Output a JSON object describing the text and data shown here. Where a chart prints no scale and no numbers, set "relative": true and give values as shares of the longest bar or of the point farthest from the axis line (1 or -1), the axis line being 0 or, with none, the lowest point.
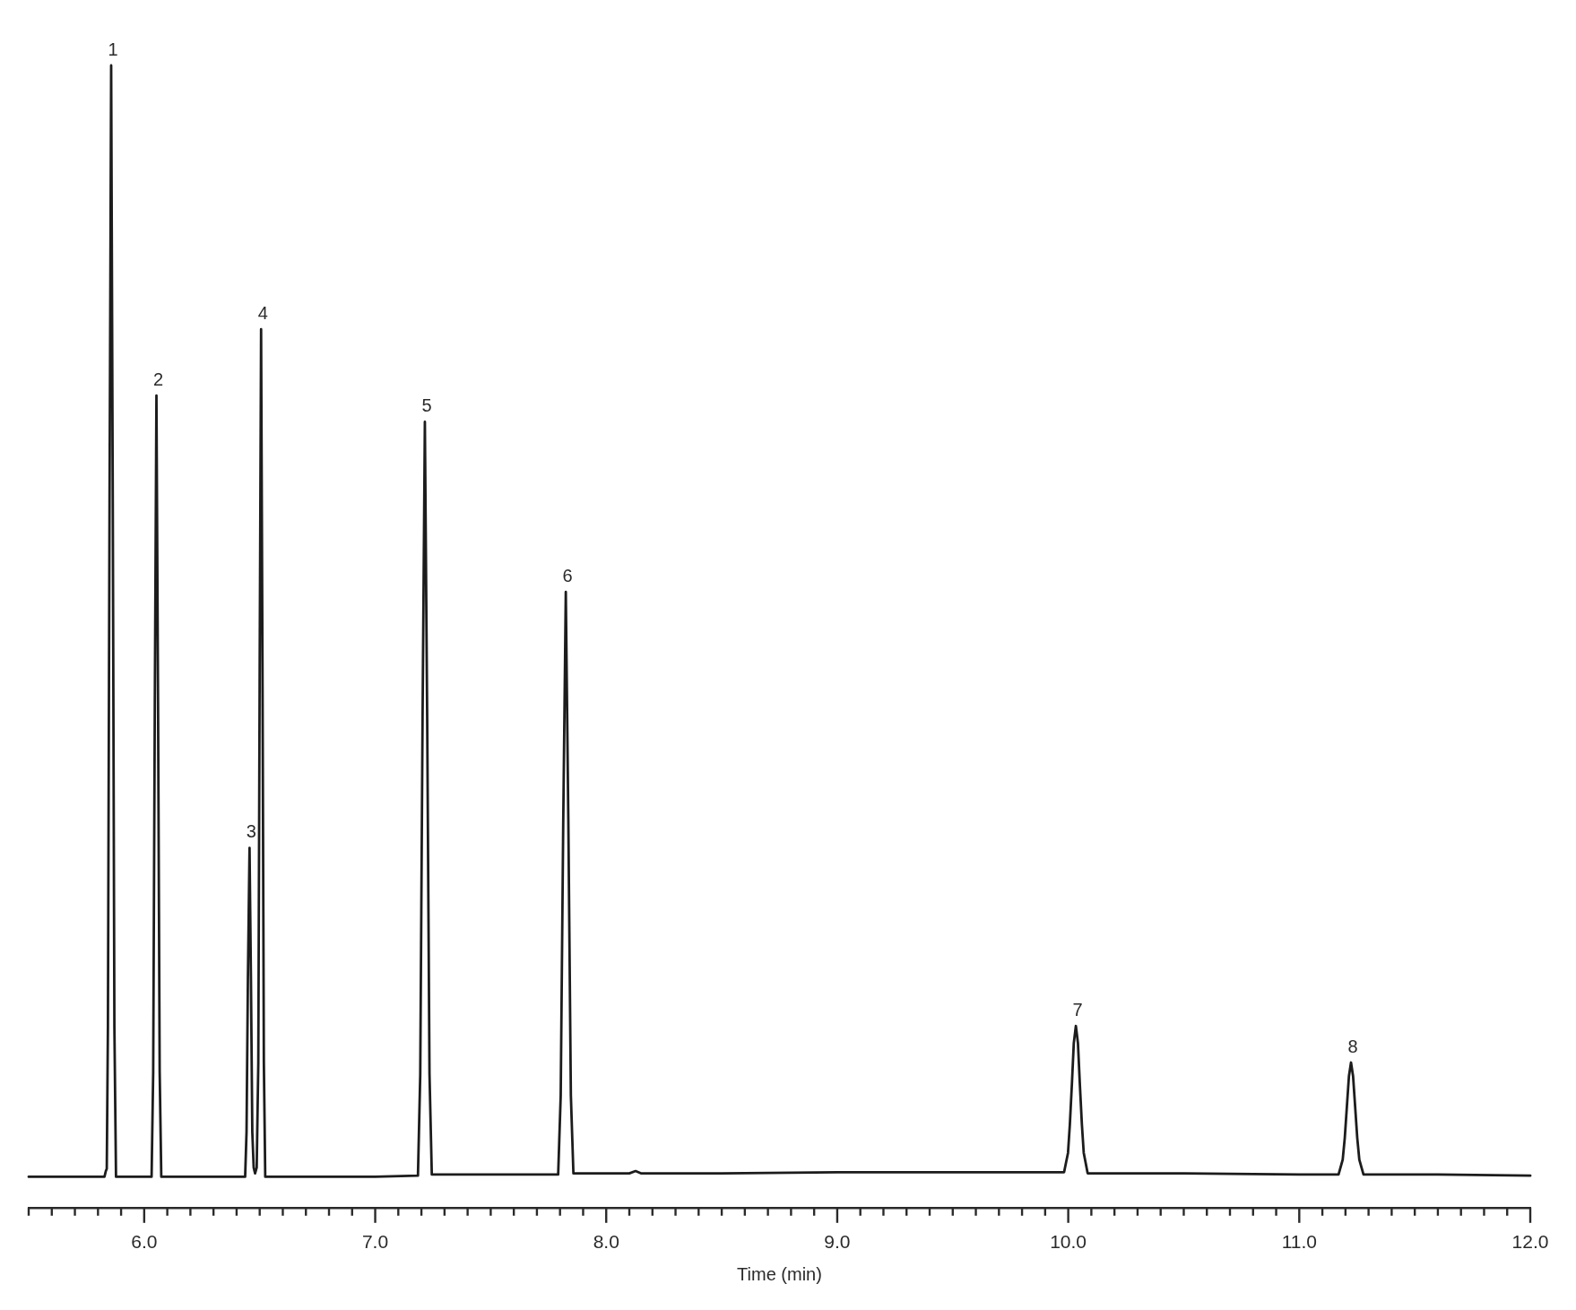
{
  "chart_data": {
    "type": "line",
    "relative": true,
    "xlabel": "Time (min)",
    "color": "#1c1c1c",
    "marker": "none",
    "line_style": "solid",
    "xlim": [
      5.5,
      12.0
    ],
    "xticks": [
      {
        "value": 5.5,
        "label": null
      },
      {
        "value": 5.6,
        "label": null
      },
      {
        "value": 5.7,
        "label": null
      },
      {
        "value": 5.8,
        "label": null
      },
      {
        "value": 5.9,
        "label": null
      },
      {
        "value": 6,
        "label": "6.0"
      },
      {
        "value": 6.1,
        "label": null
      },
      {
        "value": 6.2,
        "label": null
      },
      {
        "value": 6.3,
        "label": null
      },
      {
        "value": 6.4,
        "label": null
      },
      {
        "value": 6.5,
        "label": null
      },
      {
        "value": 6.6,
        "label": null
      },
      {
        "value": 6.7,
        "label": null
      },
      {
        "value": 6.8,
        "label": null
      },
      {
        "value": 6.9,
        "label": null
      },
      {
        "value": 7,
        "label": "7.0"
      },
      {
        "value": 7.1,
        "label": null
      },
      {
        "value": 7.2,
        "label": null
      },
      {
        "value": 7.3,
        "label": null
      },
      {
        "value": 7.4,
        "label": null
      },
      {
        "value": 7.5,
        "label": null
      },
      {
        "value": 7.6,
        "label": null
      },
      {
        "value": 7.7,
        "label": null
      },
      {
        "value": 7.8,
        "label": null
      },
      {
        "value": 7.9,
        "label": null
      },
      {
        "value": 8,
        "label": "8.0"
      },
      {
        "value": 8.1,
        "label": null
      },
      {
        "value": 8.2,
        "label": null
      },
      {
        "value": 8.3,
        "label": null
      },
      {
        "value": 8.4,
        "label": null
      },
      {
        "value": 8.5,
        "label": null
      },
      {
        "value": 8.6,
        "label": null
      },
      {
        "value": 8.7,
        "label": null
      },
      {
        "value": 8.8,
        "label": null
      },
      {
        "value": 8.9,
        "label": null
      },
      {
        "value": 9,
        "label": "9.0"
      },
      {
        "value": 9.1,
        "label": null
      },
      {
        "value": 9.2,
        "label": null
      },
      {
        "value": 9.3,
        "label": null
      },
      {
        "value": 9.4,
        "label": null
      },
      {
        "value": 9.5,
        "label": null
      },
      {
        "value": 9.6,
        "label": null
      },
      {
        "value": 9.7,
        "label": null
      },
      {
        "value": 9.8,
        "label": null
      },
      {
        "value": 9.9,
        "label": null
      },
      {
        "value": 10,
        "label": "10.0"
      },
      {
        "value": 10.1,
        "label": null
      },
      {
        "value": 10.2,
        "label": null
      },
      {
        "value": 10.3,
        "label": null
      },
      {
        "value": 10.4,
        "label": null
      },
      {
        "value": 10.5,
        "label": null
      },
      {
        "value": 10.6,
        "label": null
      },
      {
        "value": 10.7,
        "label": null
      },
      {
        "value": 10.8,
        "label": null
      },
      {
        "value": 10.9,
        "label": null
      },
      {
        "value": 11,
        "label": "11.0"
      },
      {
        "value": 11.1,
        "label": null
      },
      {
        "value": 11.2,
        "label": null
      },
      {
        "value": 11.3,
        "label": null
      },
      {
        "value": 11.4,
        "label": null
      },
      {
        "value": 11.5,
        "label": null
      },
      {
        "value": 11.6,
        "label": null
      },
      {
        "value": 11.7,
        "label": null
      },
      {
        "value": 11.8,
        "label": null
      },
      {
        "value": 11.9,
        "label": null
      },
      {
        "value": 12,
        "label": "12.0"
      }
    ],
    "x": [
      5.5,
      5.75,
      5.828,
      5.834,
      5.838,
      5.843,
      5.85,
      5.857,
      5.864,
      5.871,
      5.878,
      5.95,
      6.032,
      6.039,
      6.046,
      6.053,
      6.06,
      6.067,
      6.074,
      6.25,
      6.437,
      6.443,
      6.449,
      6.456,
      6.462,
      6.468,
      6.474,
      6.48,
      6.487,
      6.494,
      6.5,
      6.506,
      6.512,
      6.518,
      6.524,
      6.8,
      7.0,
      7.185,
      7.195,
      7.205,
      7.215,
      7.225,
      7.235,
      7.245,
      7.5,
      7.792,
      7.803,
      7.814,
      7.825,
      7.836,
      7.847,
      7.858,
      8.1,
      8.127,
      8.15,
      8.5,
      9.0,
      9.5,
      9.982,
      9.999,
      10.007,
      10.016,
      10.024,
      10.033,
      10.042,
      10.05,
      10.059,
      10.067,
      10.084,
      10.5,
      11.0,
      11.17,
      11.188,
      11.197,
      11.206,
      11.215,
      11.224,
      11.233,
      11.242,
      11.251,
      11.26,
      11.278,
      11.6,
      12.0
    ],
    "values": [
      0.027,
      0.027,
      0.027,
      0.032,
      0.034,
      0.158,
      0.618,
      1,
      0.618,
      0.158,
      0.027,
      0.027,
      0.027,
      0.119,
      0.442,
      0.711,
      0.442,
      0.119,
      0.027,
      0.027,
      0.027,
      0.066,
      0.202,
      0.315,
      0.202,
      0.066,
      0.035,
      0.03,
      0.035,
      0.127,
      0.477,
      0.769,
      0.477,
      0.127,
      0.027,
      0.027,
      0.027,
      0.028,
      0.117,
      0.429,
      0.688,
      0.429,
      0.117,
      0.029,
      0.029,
      0.029,
      0.098,
      0.339,
      0.539,
      0.339,
      0.098,
      0.03,
      0.03,
      0.032,
      0.03,
      0.03,
      0.031,
      0.031,
      0.031,
      0.048,
      0.073,
      0.109,
      0.144,
      0.159,
      0.144,
      0.109,
      0.073,
      0.048,
      0.03,
      0.03,
      0.029,
      0.029,
      0.042,
      0.061,
      0.088,
      0.115,
      0.127,
      0.115,
      0.088,
      0.061,
      0.042,
      0.029,
      0.029,
      0.028
    ],
    "annotations": [
      {
        "text": "1",
        "x": 5.857,
        "y": 1
      },
      {
        "text": "2",
        "x": 6.053,
        "y": 0.711
      },
      {
        "text": "3",
        "x": 6.456,
        "y": 0.315
      },
      {
        "text": "4",
        "x": 6.506,
        "y": 0.769
      },
      {
        "text": "5",
        "x": 7.215,
        "y": 0.688
      },
      {
        "text": "6",
        "x": 7.825,
        "y": 0.539
      },
      {
        "text": "7",
        "x": 10.033,
        "y": 0.159
      },
      {
        "text": "8",
        "x": 11.224,
        "y": 0.127
      }
    ]
  }
}
